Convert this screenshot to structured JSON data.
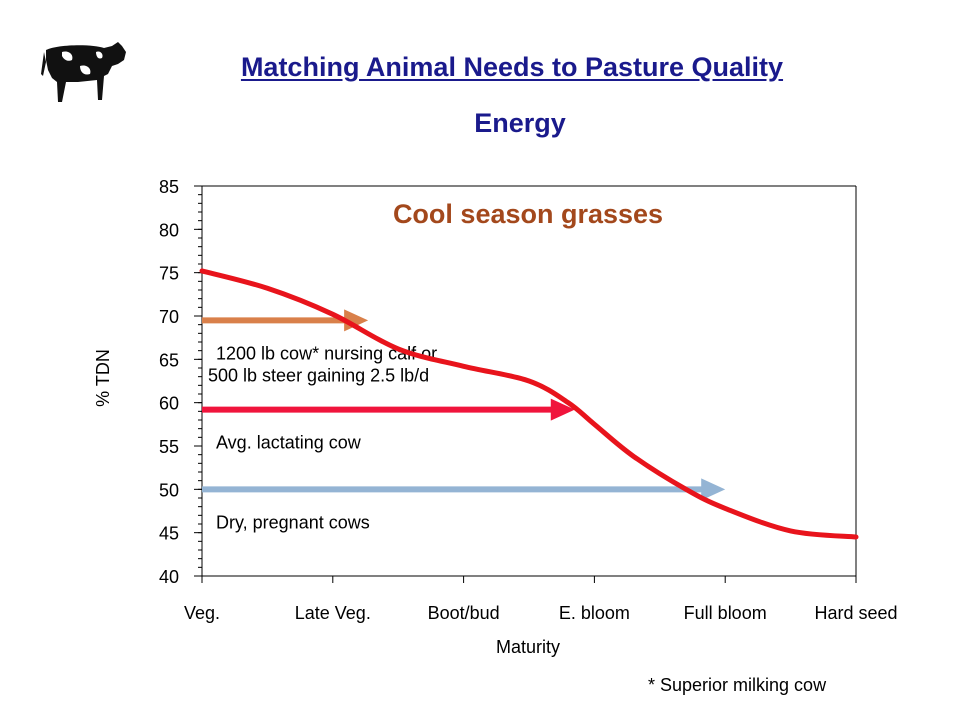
{
  "slide": {
    "title": "Matching Animal Needs to Pasture Quality",
    "subtitle": "Energy",
    "footnote": "* Superior milking cow"
  },
  "chart_data": {
    "type": "line",
    "title": "Cool season grasses",
    "xlabel": "Maturity",
    "ylabel": "% TDN",
    "categories": [
      "Veg.",
      "Late Veg.",
      "Boot/bud",
      "E. bloom",
      "Full bloom",
      "Hard seed"
    ],
    "ylim": [
      40,
      85
    ],
    "yticks": [
      40,
      45,
      50,
      55,
      60,
      65,
      70,
      75,
      80,
      85
    ],
    "series": [
      {
        "name": "",
        "color": "#e8141c",
        "x": [
          0,
          0.5,
          1.0,
          1.5,
          2.0,
          2.5,
          2.8,
          3.0,
          3.3,
          3.7,
          4.0,
          4.5,
          5.0
        ],
        "y": [
          75.2,
          73.2,
          70.2,
          66.2,
          64.2,
          62.5,
          60.0,
          57.5,
          53.8,
          50.0,
          47.8,
          45.2,
          44.5
        ]
      }
    ],
    "requirements": [
      {
        "label_lines": [
          "1200 lb cow* nursing calf or",
          "500 lb steer gaining 2.5 lb/d"
        ],
        "tdn": 69.5,
        "x_end": 1.27,
        "color": "#d9804a"
      },
      {
        "label_lines": [
          "Avg. lactating cow"
        ],
        "tdn": 59.2,
        "x_end": 2.85,
        "color": "#f0143c"
      },
      {
        "label_lines": [
          "Dry, pregnant cows"
        ],
        "tdn": 50.0,
        "x_end": 4.0,
        "color": "#94b4d4"
      }
    ]
  }
}
